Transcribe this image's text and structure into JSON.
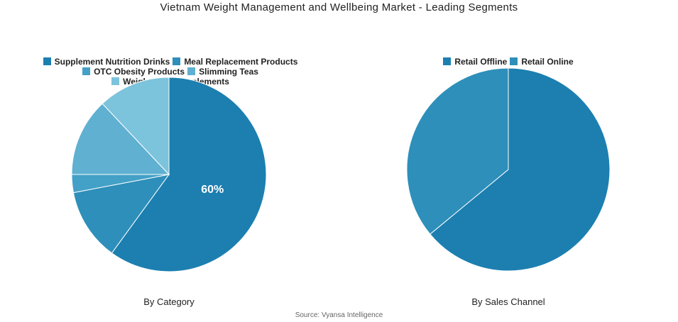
{
  "title": "Vietnam Weight Management and Wellbeing Market - Leading Segments",
  "source": "Source: Vyansa Intelligence",
  "chart_data": [
    {
      "type": "pie",
      "subtitle": "By Category",
      "legend_position": "top",
      "labels": [
        "Supplement Nutrition Drinks",
        "Meal Replacement Products",
        "OTC Obesity Products",
        "Slimming Teas",
        "Weight Loss Supplements"
      ],
      "values": [
        60,
        12,
        3,
        13,
        12
      ],
      "colors": [
        "#1c7fb0",
        "#2e8fba",
        "#43a0c7",
        "#5fb0d1",
        "#7cc3dc"
      ],
      "data_labels": [
        "60%",
        "",
        "",
        "",
        ""
      ]
    },
    {
      "type": "pie",
      "subtitle": "By Sales Channel",
      "legend_position": "top",
      "labels": [
        "Retail Offline",
        "Retail Online"
      ],
      "values": [
        64,
        36
      ],
      "colors": [
        "#1c7fb0",
        "#2e8fba"
      ],
      "data_labels": [
        "",
        ""
      ]
    }
  ]
}
